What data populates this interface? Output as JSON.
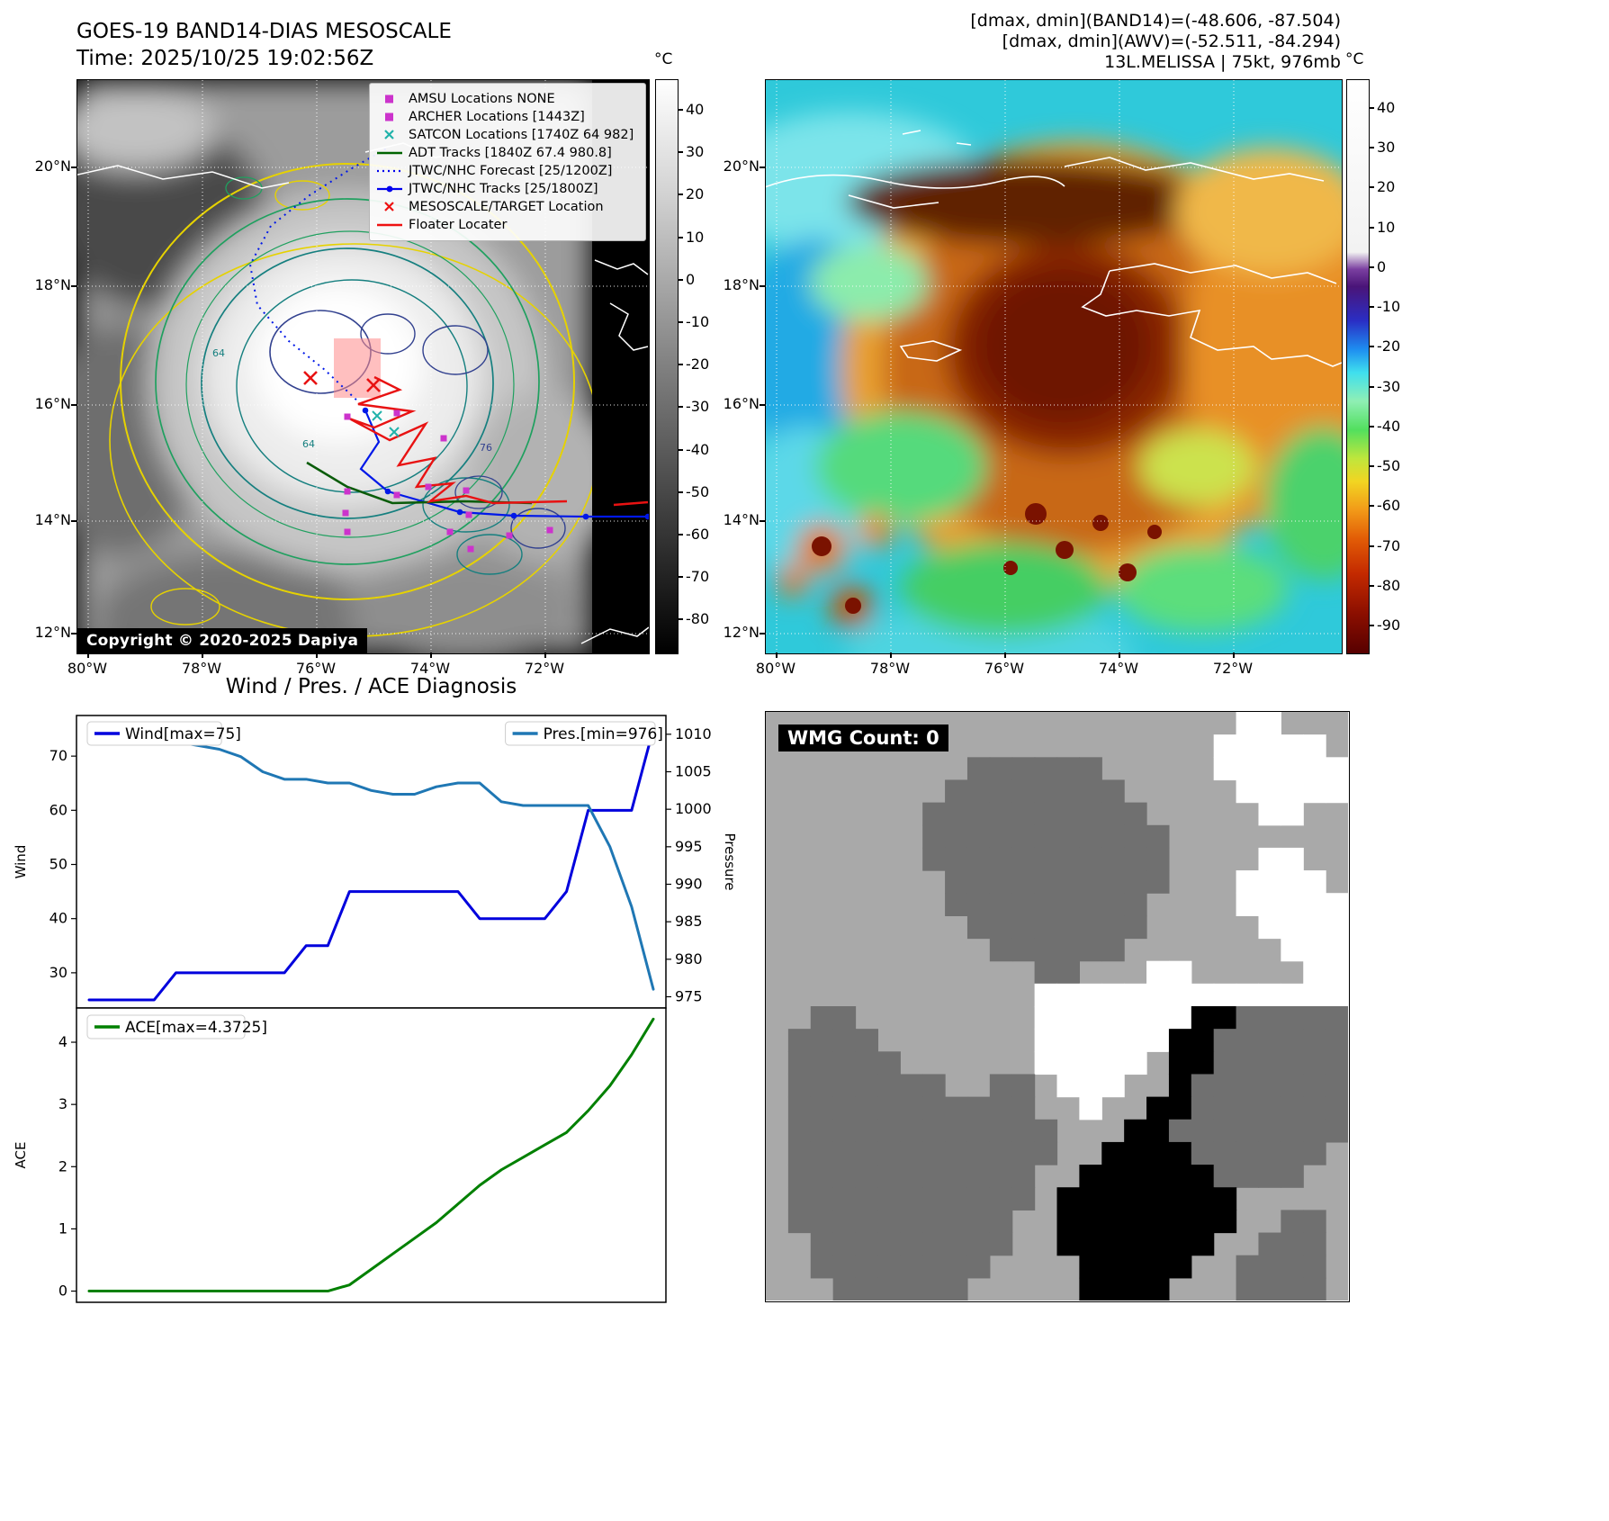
{
  "app": {
    "band14": {
      "title": "GOES-19 BAND14-DIAS MESOSCALE",
      "time": "Time: 2025/10/25 19:02:56Z",
      "copyright": "Copyright © 2020-2025 Dapiya",
      "colorbar_unit": "°C",
      "colorbar_vmax": 47,
      "colorbar_vmin": -88,
      "colorbar_ticks": [
        40,
        30,
        20,
        10,
        0,
        -10,
        -20,
        -30,
        -40,
        -50,
        -60,
        -70,
        -80
      ],
      "colorbar_stops": [
        {
          "at": 0,
          "color": "#ffffff"
        },
        {
          "at": 0.2,
          "color": "#d2d2d2"
        },
        {
          "at": 0.5,
          "color": "#808080"
        },
        {
          "at": 0.8,
          "color": "#333333"
        },
        {
          "at": 1,
          "color": "#000000"
        }
      ],
      "lat_ticks": [
        "20°N",
        "18°N",
        "16°N",
        "14°N",
        "12°N"
      ],
      "lon_ticks": [
        "80°W",
        "78°W",
        "76°W",
        "74°W",
        "72°W"
      ],
      "contour_labels": [
        "64",
        "64",
        "76"
      ],
      "legend": [
        {
          "label": "AMSU Locations NONE",
          "marker": "square",
          "color": "#cc33cc"
        },
        {
          "label": "ARCHER Locations [1443Z]",
          "marker": "square",
          "color": "#cc33cc"
        },
        {
          "label": "SATCON Locations [1740Z 64 982]",
          "marker": "x",
          "color": "#20b2aa"
        },
        {
          "label": "ADT Tracks [1840Z 67.4 980.8]",
          "marker": "line",
          "color": "#006400"
        },
        {
          "label": "JTWC/NHC Forecast [25/1200Z]",
          "marker": "dotted",
          "color": "#0000ee"
        },
        {
          "label": "JTWC/NHC Tracks [25/1800Z]",
          "marker": "line-dot",
          "color": "#0000ee"
        },
        {
          "label": "MESOSCALE/TARGET Location",
          "marker": "x",
          "color": "#ee1111"
        },
        {
          "label": "Floater Locater",
          "marker": "line",
          "color": "#ee1111"
        }
      ]
    },
    "awv": {
      "header_lines": [
        "[dmax, dmin](BAND14)=(-48.606, -87.504)",
        "[dmax, dmin](AWV)=(-52.511, -84.294)",
        "13L.MELISSA | 75kt, 976mb"
      ],
      "colorbar_unit": "°C",
      "colorbar_vmax": 47,
      "colorbar_vmin": -97,
      "colorbar_ticks": [
        40,
        30,
        20,
        10,
        0,
        -10,
        -20,
        -30,
        -40,
        -50,
        -60,
        -70,
        -80,
        -90
      ],
      "colorbar_stops": [
        {
          "at": 0,
          "color": "#ffffff"
        },
        {
          "at": 0.3,
          "color": "#f2f2f2"
        },
        {
          "at": 0.33,
          "color": "#7a3fa0"
        },
        {
          "at": 0.36,
          "color": "#4a1478"
        },
        {
          "at": 0.42,
          "color": "#2a2ec4"
        },
        {
          "at": 0.47,
          "color": "#1e8ef0"
        },
        {
          "at": 0.51,
          "color": "#3fdfee"
        },
        {
          "at": 0.56,
          "color": "#8fefb4"
        },
        {
          "at": 0.61,
          "color": "#52df5e"
        },
        {
          "at": 0.66,
          "color": "#bfe63c"
        },
        {
          "at": 0.7,
          "color": "#f2d522"
        },
        {
          "at": 0.75,
          "color": "#f29a18"
        },
        {
          "at": 0.8,
          "color": "#e25c06"
        },
        {
          "at": 0.86,
          "color": "#c42a00"
        },
        {
          "at": 0.93,
          "color": "#8c0f00"
        },
        {
          "at": 1,
          "color": "#570000"
        }
      ],
      "lat_ticks": [
        "20°N",
        "18°N",
        "16°N",
        "14°N",
        "12°N"
      ],
      "lon_ticks": [
        "80°W",
        "78°W",
        "76°W",
        "74°W",
        "72°W"
      ]
    },
    "wmg": {
      "label": "WMG Count: 0",
      "palette": {
        "L": "#a9a9a9",
        "D": "#707070",
        "W": "#ffffff",
        "B": "#000000"
      },
      "grid": [
        "LLLLLLLLLLLLLLLLLLLLLWWLLL",
        "LLLLLLLLLLLLLLLLLLLLWWWWWL",
        "LLLLLLLLLDDDDDDLLLLLWWWWWW",
        "LLLLLLLLDDDDDDDDLLLLLWWWWW",
        "LLLLLLLDDDDDDDDDDLLLLLWWLL",
        "LLLLLLLDDDDDDDDDDDLLLLLLLL",
        "LLLLLLLDDDDDDDDDDDLLLLWWLL",
        "LLLLLLLLDDDDDDDDDDLLLWWWWL",
        "LLLLLLLLDDDDDDDDDLLLLWWWWW",
        "LLLLLLLLLDDDDDDDDLLLLLWWWW",
        "LLLLLLLLLLDDDDDDLLLLLLLWWW",
        "LLLLLLLLLLLLDDLLLWWLLLLLWW",
        "LLLLLLLLLLLLWWWWWWWWWWWWWW",
        "LLDDLLLLLLLLWWWWWWWBBDDDDD",
        "LDDDDLLLLLLLWWWWWWBBDDDDDD",
        "LDDDDDLLLLLLWWWWWLBBDDDDDD",
        "LDDDDDDDLLDDLWWWLLBDDDDDDD",
        "LDDDDDDDDDDDLLWLLBBDDDDDDD",
        "LDDDDDDDDDDDDLLLBBDDDDDDDD",
        "LDDDDDDDDDDDDLLBBBBDDDDDDL",
        "LDDDDDDDDDDDLLBBBBBBDDDDLL",
        "LDDDDDDDDDDDLBBBBBBBBLLLLL",
        "LDDDDDDDDDDLLBBBBBBBBLLDDL",
        "LLDDDDDDDDDLLBBBBBBBLLDDDL",
        "LLDDDDDDDDLLLLBBBBBLLDDDDL",
        "LLLDDDDDDLLLLLBBBBLLLDDDDL"
      ]
    }
  },
  "chart_data": [
    {
      "type": "line",
      "title": "Wind / Pres. / ACE Diagnosis",
      "x": [
        0,
        1,
        2,
        3,
        4,
        5,
        6,
        7,
        8,
        9,
        10,
        11,
        12,
        13,
        14,
        15,
        16,
        17,
        18,
        19,
        20,
        21,
        22,
        23,
        24,
        25,
        26
      ],
      "series": [
        {
          "name": "Wind[max=75]",
          "ylabel": "Wind",
          "axis": "left",
          "color": "#0000dd",
          "values": [
            25,
            25,
            25,
            25,
            30,
            30,
            30,
            30,
            30,
            30,
            35,
            35,
            45,
            45,
            45,
            45,
            45,
            45,
            40,
            40,
            40,
            40,
            45,
            60,
            60,
            60,
            75
          ]
        },
        {
          "name": "Pres.[min=976]",
          "ylabel": "Pressure",
          "axis": "right",
          "color": "#1f77b4",
          "values": [
            1010,
            1010,
            1009.5,
            1009,
            1009,
            1008.5,
            1008,
            1007,
            1005,
            1004,
            1004,
            1003.5,
            1003.5,
            1002.5,
            1002,
            1002,
            1003,
            1003.5,
            1003.5,
            1001,
            1000.5,
            1000.5,
            1000.5,
            1000.5,
            995,
            987,
            976
          ]
        }
      ],
      "ylim_left": [
        23.5,
        77.5
      ],
      "yticks_left": [
        30,
        40,
        50,
        60,
        70
      ],
      "ylim_right": [
        973.5,
        1012.5
      ],
      "yticks_right": [
        975,
        980,
        985,
        990,
        995,
        1000,
        1005,
        1010
      ],
      "grid": false,
      "legend_positions": [
        "upper-left",
        "upper-right"
      ]
    },
    {
      "type": "line",
      "title": "",
      "x": [
        0,
        1,
        2,
        3,
        4,
        5,
        6,
        7,
        8,
        9,
        10,
        11,
        12,
        13,
        14,
        15,
        16,
        17,
        18,
        19,
        20,
        21,
        22,
        23,
        24,
        25,
        26
      ],
      "series": [
        {
          "name": "ACE[max=4.3725]",
          "ylabel": "ACE",
          "axis": "left",
          "color": "#008000",
          "values": [
            0,
            0,
            0,
            0,
            0,
            0,
            0,
            0,
            0,
            0,
            0,
            0,
            0.1,
            0.35,
            0.6,
            0.85,
            1.1,
            1.4,
            1.7,
            1.95,
            2.15,
            2.35,
            2.55,
            2.9,
            3.3,
            3.8,
            4.3725
          ]
        }
      ],
      "ylim_left": [
        -0.18,
        4.55
      ],
      "yticks_left": [
        0,
        1,
        2,
        3,
        4
      ],
      "grid": false,
      "legend_positions": [
        "upper-left"
      ]
    }
  ]
}
